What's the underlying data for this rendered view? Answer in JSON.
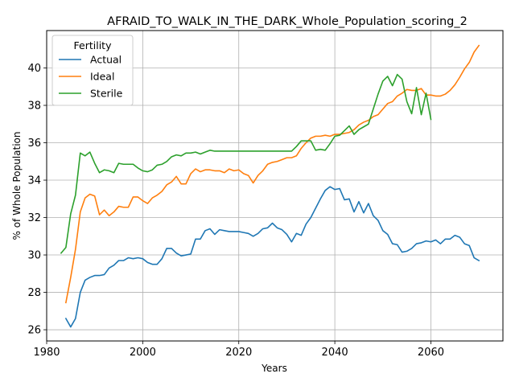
{
  "chart_data": {
    "type": "line",
    "title": "AFRAID_TO_WALK_IN_THE_DARK_Whole_Population_scoring_2",
    "xlabel": "Years",
    "ylabel": "% of Whole Population",
    "xlim": [
      1980,
      2075
    ],
    "ylim": [
      25.4,
      42.0
    ],
    "xticks": [
      1980,
      2000,
      2020,
      2040,
      2060
    ],
    "yticks": [
      26,
      28,
      30,
      32,
      34,
      36,
      38,
      40
    ],
    "grid": true,
    "legend": {
      "title": "Fertility",
      "placement": "top-left"
    },
    "series": [
      {
        "name": "Actual",
        "color": "#1f77b4",
        "x": [
          1984,
          1985,
          1986,
          1987,
          1988,
          1989,
          1990,
          1991,
          1992,
          1993,
          1994,
          1995,
          1996,
          1997,
          1998,
          1999,
          2000,
          2001,
          2002,
          2003,
          2004,
          2005,
          2006,
          2007,
          2008,
          2009,
          2010,
          2011,
          2012,
          2013,
          2014,
          2015,
          2016,
          2017,
          2018,
          2019,
          2020,
          2021,
          2022,
          2023,
          2024,
          2025,
          2026,
          2027,
          2028,
          2029,
          2030,
          2031,
          2032,
          2033,
          2034,
          2035,
          2036,
          2037,
          2038,
          2039,
          2040,
          2041,
          2042,
          2043,
          2044,
          2045,
          2046,
          2047,
          2048,
          2049,
          2050,
          2051,
          2052,
          2053,
          2054,
          2055,
          2056,
          2057,
          2058,
          2059,
          2060,
          2061,
          2062,
          2063,
          2064,
          2065,
          2066,
          2067,
          2068,
          2069,
          2070
        ],
        "y": [
          26.6,
          26.15,
          26.6,
          28.0,
          28.65,
          28.8,
          28.9,
          28.9,
          28.95,
          29.3,
          29.45,
          29.7,
          29.7,
          29.85,
          29.8,
          29.85,
          29.8,
          29.6,
          29.5,
          29.5,
          29.8,
          30.35,
          30.35,
          30.1,
          29.95,
          30.0,
          30.05,
          30.85,
          30.85,
          31.3,
          31.4,
          31.1,
          31.35,
          31.3,
          31.25,
          31.25,
          31.25,
          31.2,
          31.15,
          31.0,
          31.15,
          31.4,
          31.45,
          31.7,
          31.45,
          31.35,
          31.1,
          30.7,
          31.15,
          31.05,
          31.65,
          32.0,
          32.5,
          33.0,
          33.45,
          33.65,
          33.5,
          33.55,
          32.95,
          33.0,
          32.3,
          32.85,
          32.25,
          32.75,
          32.1,
          31.85,
          31.3,
          31.1,
          30.6,
          30.55,
          30.15,
          30.2,
          30.35,
          30.6,
          30.65,
          30.75,
          30.7,
          30.8,
          30.6,
          30.85,
          30.85,
          31.05,
          30.95,
          30.6,
          30.5,
          29.85,
          29.7
        ]
      },
      {
        "name": "Ideal",
        "color": "#ff7f0e",
        "x": [
          1984,
          1985,
          1986,
          1987,
          1988,
          1989,
          1990,
          1991,
          1992,
          1993,
          1994,
          1995,
          1996,
          1997,
          1998,
          1999,
          2000,
          2001,
          2002,
          2003,
          2004,
          2005,
          2006,
          2007,
          2008,
          2009,
          2010,
          2011,
          2012,
          2013,
          2014,
          2015,
          2016,
          2017,
          2018,
          2019,
          2020,
          2021,
          2022,
          2023,
          2024,
          2025,
          2026,
          2027,
          2028,
          2029,
          2030,
          2031,
          2032,
          2033,
          2034,
          2035,
          2036,
          2037,
          2038,
          2039,
          2040,
          2041,
          2042,
          2043,
          2044,
          2045,
          2046,
          2047,
          2048,
          2049,
          2050,
          2051,
          2052,
          2053,
          2054,
          2055,
          2056,
          2057,
          2058,
          2059,
          2060,
          2061,
          2062,
          2063,
          2064,
          2065,
          2066,
          2067,
          2068,
          2069,
          2070
        ],
        "y": [
          27.45,
          28.8,
          30.3,
          32.3,
          33.05,
          33.25,
          33.15,
          32.15,
          32.4,
          32.1,
          32.3,
          32.6,
          32.55,
          32.55,
          33.1,
          33.1,
          32.9,
          32.75,
          33.05,
          33.2,
          33.4,
          33.75,
          33.9,
          34.2,
          33.8,
          33.8,
          34.35,
          34.6,
          34.45,
          34.55,
          34.55,
          34.5,
          34.5,
          34.4,
          34.6,
          34.5,
          34.55,
          34.35,
          34.25,
          33.85,
          34.25,
          34.5,
          34.85,
          34.95,
          35.0,
          35.1,
          35.2,
          35.2,
          35.3,
          35.7,
          36.0,
          36.25,
          36.35,
          36.35,
          36.4,
          36.35,
          36.45,
          36.45,
          36.5,
          36.55,
          36.7,
          36.95,
          37.1,
          37.2,
          37.4,
          37.5,
          37.8,
          38.1,
          38.2,
          38.5,
          38.65,
          38.85,
          38.8,
          38.8,
          38.9,
          38.55,
          38.55,
          38.5,
          38.5,
          38.6,
          38.8,
          39.1,
          39.5,
          39.95,
          40.3,
          40.85,
          41.2
        ]
      },
      {
        "name": "Sterile",
        "color": "#2ca02c",
        "x": [
          1983,
          1984,
          1985,
          1986,
          1987,
          1988,
          1989,
          1990,
          1991,
          1992,
          1993,
          1994,
          1995,
          1996,
          1997,
          1998,
          1999,
          2000,
          2001,
          2002,
          2003,
          2004,
          2005,
          2006,
          2007,
          2008,
          2009,
          2010,
          2011,
          2012,
          2013,
          2014,
          2015,
          2020,
          2025,
          2030,
          2031,
          2032,
          2033,
          2034,
          2035,
          2036,
          2037,
          2038,
          2039,
          2040,
          2041,
          2042,
          2043,
          2044,
          2045,
          2046,
          2047,
          2048,
          2049,
          2050,
          2051,
          2052,
          2053,
          2054,
          2055,
          2056,
          2057,
          2058,
          2059,
          2060
        ],
        "y": [
          30.1,
          30.4,
          32.2,
          33.2,
          35.45,
          35.3,
          35.5,
          34.9,
          34.4,
          34.55,
          34.5,
          34.4,
          34.9,
          34.85,
          34.85,
          34.85,
          34.65,
          34.5,
          34.45,
          34.55,
          34.8,
          34.85,
          35.0,
          35.25,
          35.35,
          35.3,
          35.45,
          35.45,
          35.5,
          35.4,
          35.5,
          35.6,
          35.55,
          35.55,
          35.55,
          35.55,
          35.55,
          35.8,
          36.1,
          36.1,
          36.1,
          35.6,
          35.65,
          35.6,
          35.95,
          36.35,
          36.4,
          36.65,
          36.9,
          36.45,
          36.7,
          36.85,
          37.0,
          37.8,
          38.6,
          39.3,
          39.55,
          39.05,
          39.65,
          39.4,
          38.2,
          37.55,
          38.95,
          37.5,
          38.65,
          37.25
        ]
      }
    ]
  }
}
